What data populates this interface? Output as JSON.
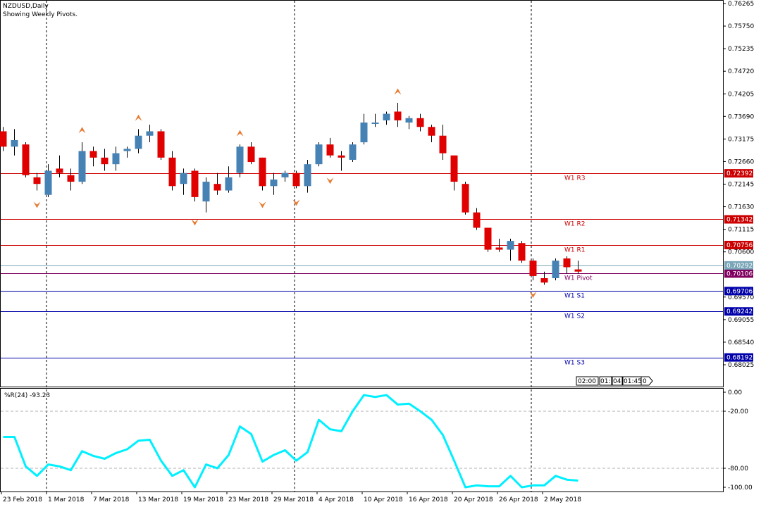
{
  "chart_data": [
    {
      "type": "candlestick",
      "title": "NZDUSD,Daily",
      "subtitle": "Showing Weekly Pivots.",
      "y_ticks": [
        "0.76265",
        "0.75750",
        "0.75235",
        "0.74720",
        "0.74205",
        "0.73690",
        "0.73175",
        "0.72660",
        "0.72145",
        "0.71630",
        "0.71115",
        "0.70600",
        "0.69570",
        "0.69055",
        "0.68540",
        "0.68025"
      ],
      "y_tick_values": [
        0.76265,
        0.7575,
        0.75235,
        0.7472,
        0.74205,
        0.7369,
        0.73175,
        0.7266,
        0.72145,
        0.7163,
        0.71115,
        0.706,
        0.6957,
        0.69055,
        0.6854,
        0.68025
      ],
      "x_labels": [
        "23 Feb 2018",
        "1 Mar 2018",
        "7 Mar 2018",
        "13 Mar 2018",
        "19 Mar 2018",
        "23 Mar 2018",
        "29 Mar 2018",
        "4 Apr 2018",
        "10 Apr 2018",
        "16 Apr 2018",
        "20 Apr 2018",
        "26 Apr 2018",
        "2 May 2018"
      ],
      "candles": [
        {
          "o": 0.7335,
          "h": 0.7345,
          "l": 0.729,
          "c": 0.73
        },
        {
          "o": 0.73,
          "h": 0.734,
          "l": 0.728,
          "c": 0.7315
        },
        {
          "o": 0.7305,
          "h": 0.731,
          "l": 0.723,
          "c": 0.7235
        },
        {
          "o": 0.723,
          "h": 0.724,
          "l": 0.72,
          "c": 0.7215
        },
        {
          "o": 0.719,
          "h": 0.726,
          "l": 0.7185,
          "c": 0.7245
        },
        {
          "o": 0.725,
          "h": 0.728,
          "l": 0.723,
          "c": 0.724
        },
        {
          "o": 0.7235,
          "h": 0.725,
          "l": 0.72,
          "c": 0.722
        },
        {
          "o": 0.722,
          "h": 0.731,
          "l": 0.7215,
          "c": 0.729
        },
        {
          "o": 0.729,
          "h": 0.73,
          "l": 0.7255,
          "c": 0.7275
        },
        {
          "o": 0.7275,
          "h": 0.7295,
          "l": 0.7245,
          "c": 0.726
        },
        {
          "o": 0.726,
          "h": 0.73,
          "l": 0.7245,
          "c": 0.7285
        },
        {
          "o": 0.729,
          "h": 0.73,
          "l": 0.7275,
          "c": 0.7295
        },
        {
          "o": 0.7295,
          "h": 0.734,
          "l": 0.7285,
          "c": 0.7325
        },
        {
          "o": 0.7325,
          "h": 0.735,
          "l": 0.731,
          "c": 0.7335
        },
        {
          "o": 0.7335,
          "h": 0.734,
          "l": 0.727,
          "c": 0.7275
        },
        {
          "o": 0.7275,
          "h": 0.729,
          "l": 0.72,
          "c": 0.721
        },
        {
          "o": 0.7215,
          "h": 0.725,
          "l": 0.719,
          "c": 0.724
        },
        {
          "o": 0.7245,
          "h": 0.725,
          "l": 0.7175,
          "c": 0.7185
        },
        {
          "o": 0.7175,
          "h": 0.723,
          "l": 0.715,
          "c": 0.722
        },
        {
          "o": 0.7215,
          "h": 0.724,
          "l": 0.719,
          "c": 0.72
        },
        {
          "o": 0.72,
          "h": 0.7255,
          "l": 0.7195,
          "c": 0.723
        },
        {
          "o": 0.724,
          "h": 0.7305,
          "l": 0.723,
          "c": 0.73
        },
        {
          "o": 0.73,
          "h": 0.731,
          "l": 0.726,
          "c": 0.7265
        },
        {
          "o": 0.7275,
          "h": 0.7275,
          "l": 0.72,
          "c": 0.721
        },
        {
          "o": 0.721,
          "h": 0.724,
          "l": 0.719,
          "c": 0.7225
        },
        {
          "o": 0.723,
          "h": 0.7245,
          "l": 0.722,
          "c": 0.724
        },
        {
          "o": 0.724,
          "h": 0.7245,
          "l": 0.7205,
          "c": 0.721
        },
        {
          "o": 0.721,
          "h": 0.727,
          "l": 0.7195,
          "c": 0.726
        },
        {
          "o": 0.726,
          "h": 0.731,
          "l": 0.7255,
          "c": 0.7305
        },
        {
          "o": 0.7305,
          "h": 0.732,
          "l": 0.7275,
          "c": 0.728
        },
        {
          "o": 0.728,
          "h": 0.729,
          "l": 0.7245,
          "c": 0.7275
        },
        {
          "o": 0.727,
          "h": 0.731,
          "l": 0.7265,
          "c": 0.7305
        },
        {
          "o": 0.731,
          "h": 0.7375,
          "l": 0.7305,
          "c": 0.7355
        },
        {
          "o": 0.7355,
          "h": 0.7375,
          "l": 0.7345,
          "c": 0.7355
        },
        {
          "o": 0.736,
          "h": 0.738,
          "l": 0.735,
          "c": 0.7375
        },
        {
          "o": 0.738,
          "h": 0.74,
          "l": 0.7345,
          "c": 0.736
        },
        {
          "o": 0.7355,
          "h": 0.737,
          "l": 0.734,
          "c": 0.7365
        },
        {
          "o": 0.7365,
          "h": 0.7375,
          "l": 0.7335,
          "c": 0.7345
        },
        {
          "o": 0.7345,
          "h": 0.735,
          "l": 0.731,
          "c": 0.7325
        },
        {
          "o": 0.7325,
          "h": 0.735,
          "l": 0.727,
          "c": 0.7285
        },
        {
          "o": 0.728,
          "h": 0.728,
          "l": 0.72,
          "c": 0.722
        },
        {
          "o": 0.7215,
          "h": 0.722,
          "l": 0.7145,
          "c": 0.715
        },
        {
          "o": 0.715,
          "h": 0.716,
          "l": 0.711,
          "c": 0.7115
        },
        {
          "o": 0.7115,
          "h": 0.7115,
          "l": 0.706,
          "c": 0.7065
        },
        {
          "o": 0.707,
          "h": 0.709,
          "l": 0.706,
          "c": 0.7065
        },
        {
          "o": 0.7065,
          "h": 0.709,
          "l": 0.704,
          "c": 0.7085
        },
        {
          "o": 0.708,
          "h": 0.7085,
          "l": 0.7035,
          "c": 0.704
        },
        {
          "o": 0.704,
          "h": 0.7045,
          "l": 0.6995,
          "c": 0.7005
        },
        {
          "o": 0.7,
          "h": 0.7015,
          "l": 0.6985,
          "c": 0.699
        },
        {
          "o": 0.7,
          "h": 0.7045,
          "l": 0.6995,
          "c": 0.704
        },
        {
          "o": 0.7045,
          "h": 0.705,
          "l": 0.701,
          "c": 0.7025
        },
        {
          "o": 0.702,
          "h": 0.704,
          "l": 0.701,
          "c": 0.7015
        }
      ],
      "fractals_up": [
        {
          "i": 7,
          "v": 0.7337
        },
        {
          "i": 12,
          "v": 0.7365
        },
        {
          "i": 21,
          "v": 0.733
        },
        {
          "i": 35,
          "v": 0.7425
        }
      ],
      "fractals_down": [
        {
          "i": 3,
          "v": 0.7168
        },
        {
          "i": 17,
          "v": 0.7128
        },
        {
          "i": 23,
          "v": 0.7168
        },
        {
          "i": 26,
          "v": 0.7173
        },
        {
          "i": 29,
          "v": 0.7223
        },
        {
          "i": 47,
          "v": 0.6963
        }
      ],
      "pivots": [
        {
          "name": "W1 R3",
          "tag": "0.72392",
          "value": 0.72392,
          "color": "#cc0000"
        },
        {
          "name": "W1 R2",
          "tag": "0.71342",
          "value": 0.71342,
          "color": "#cc0000"
        },
        {
          "name": "W1 R1",
          "tag": "0.70756",
          "value": 0.70756,
          "color": "#cc0000"
        },
        {
          "name": "W1 Pivot",
          "tag": "0.70106",
          "value": 0.70106,
          "color": "#800060"
        },
        {
          "name": "W1 S1",
          "tag": "0.69706",
          "value": 0.69706,
          "color": "#0000aa"
        },
        {
          "name": "W1 S2",
          "tag": "0.69242",
          "value": 0.69242,
          "color": "#0000aa"
        },
        {
          "name": "W1 S3",
          "tag": "0.68192",
          "value": 0.68192,
          "color": "#0000aa"
        }
      ],
      "current_price": {
        "tag": "0.70292",
        "value": 0.70292,
        "color": "#7aa6b8"
      },
      "clock_labels": [
        "02:00",
        "01:",
        "04:",
        "01:45",
        "0"
      ],
      "colors": {
        "bull": "#4682b4",
        "bear": "#e00000",
        "wick": "#000000",
        "fractal": "#e87a30"
      }
    },
    {
      "type": "line",
      "title": "%R(24) -93.23",
      "y_ticks": [
        "0.00",
        "-20.00",
        "-80.00",
        "-100.00"
      ],
      "y_tick_values": [
        0,
        -20,
        -80,
        -100
      ],
      "values": [
        -47,
        -47,
        -78,
        -88,
        -76,
        -78,
        -82,
        -62,
        -67,
        -70,
        -64,
        -60,
        -51,
        -50,
        -72,
        -88,
        -82,
        -100,
        -76,
        -80,
        -66,
        -36,
        -44,
        -73,
        -66,
        -61,
        -72,
        -63,
        -29,
        -39,
        -41,
        -20,
        -3,
        -5,
        -3,
        -13,
        -12,
        -20,
        -29,
        -45,
        -72,
        -100,
        -98,
        -99,
        -99,
        -88,
        -100,
        -98,
        -98,
        -88,
        -92,
        -93
      ],
      "color": "#00f0ff"
    }
  ]
}
